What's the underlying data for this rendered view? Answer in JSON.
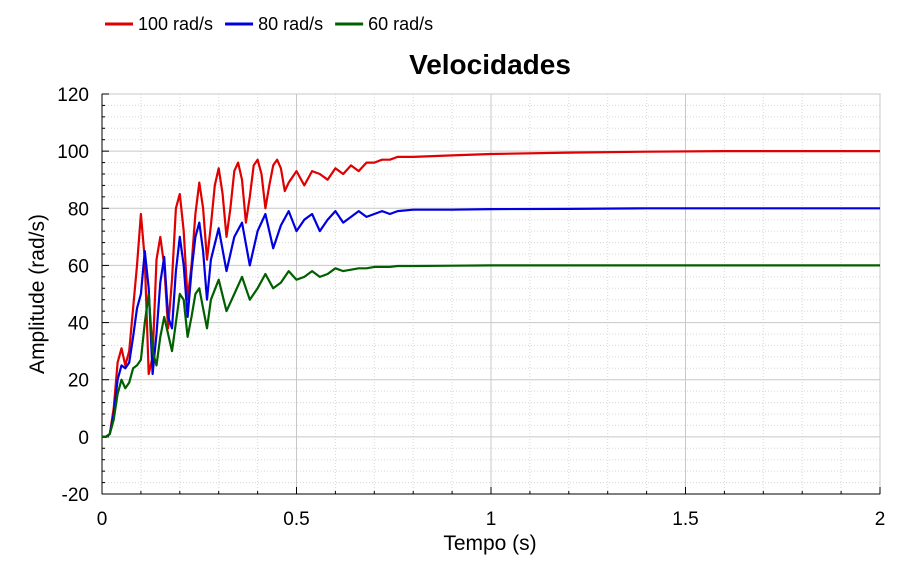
{
  "chart_data": {
    "type": "line",
    "title": "Velocidades",
    "xlabel": "Tempo (s)",
    "ylabel": "Amplitude (rad/s)",
    "xlim": [
      0,
      2
    ],
    "ylim": [
      -20,
      120
    ],
    "x_ticks": [
      0,
      0.5,
      1,
      1.5,
      2
    ],
    "x_tick_labels": [
      "0",
      "0.5",
      "1",
      "1.5",
      "2"
    ],
    "y_ticks": [
      -20,
      0,
      20,
      40,
      60,
      80,
      100,
      120
    ],
    "y_tick_labels": [
      "-20",
      "0",
      "20",
      "40",
      "60",
      "80",
      "100",
      "120"
    ],
    "grid": true,
    "legend_position": "top-left",
    "series": [
      {
        "name": "100 rad/s",
        "color": "#e00000",
        "x": [
          0,
          0.01,
          0.02,
          0.03,
          0.04,
          0.05,
          0.06,
          0.07,
          0.08,
          0.09,
          0.1,
          0.11,
          0.12,
          0.13,
          0.14,
          0.15,
          0.16,
          0.17,
          0.18,
          0.19,
          0.2,
          0.21,
          0.22,
          0.23,
          0.24,
          0.25,
          0.26,
          0.27,
          0.28,
          0.29,
          0.3,
          0.31,
          0.32,
          0.33,
          0.34,
          0.35,
          0.36,
          0.37,
          0.38,
          0.39,
          0.4,
          0.41,
          0.42,
          0.43,
          0.44,
          0.45,
          0.46,
          0.47,
          0.48,
          0.5,
          0.52,
          0.54,
          0.56,
          0.58,
          0.6,
          0.62,
          0.64,
          0.66,
          0.68,
          0.7,
          0.72,
          0.74,
          0.76,
          0.8,
          0.9,
          1.0,
          1.2,
          1.4,
          1.6,
          2.0
        ],
        "y": [
          0,
          0,
          1,
          10,
          26,
          31,
          25,
          30,
          45,
          60,
          78,
          62,
          22,
          28,
          62,
          70,
          60,
          38,
          55,
          80,
          85,
          72,
          48,
          60,
          78,
          89,
          80,
          62,
          74,
          88,
          94,
          85,
          70,
          80,
          93,
          96,
          90,
          75,
          84,
          95,
          97,
          92,
          80,
          88,
          95,
          97,
          94,
          86,
          89,
          93,
          88,
          93,
          92,
          90,
          94,
          92,
          95,
          93,
          96,
          96,
          97,
          97,
          98,
          98,
          98.5,
          99,
          99.5,
          99.8,
          100,
          100
        ]
      },
      {
        "name": "80 rad/s",
        "color": "#0000e0",
        "x": [
          0,
          0.01,
          0.02,
          0.03,
          0.04,
          0.05,
          0.06,
          0.07,
          0.08,
          0.09,
          0.1,
          0.11,
          0.12,
          0.13,
          0.14,
          0.15,
          0.16,
          0.17,
          0.18,
          0.19,
          0.2,
          0.21,
          0.22,
          0.23,
          0.24,
          0.25,
          0.26,
          0.27,
          0.28,
          0.3,
          0.32,
          0.34,
          0.36,
          0.38,
          0.4,
          0.42,
          0.44,
          0.46,
          0.48,
          0.5,
          0.52,
          0.54,
          0.56,
          0.58,
          0.6,
          0.62,
          0.64,
          0.66,
          0.68,
          0.7,
          0.72,
          0.74,
          0.76,
          0.8,
          0.9,
          1.0,
          1.2,
          1.4,
          1.6,
          2.0
        ],
        "y": [
          0,
          0,
          1,
          8,
          20,
          25,
          24,
          26,
          35,
          45,
          50,
          65,
          52,
          22,
          36,
          54,
          63,
          42,
          38,
          58,
          70,
          60,
          42,
          58,
          70,
          75,
          65,
          48,
          62,
          73,
          58,
          70,
          75,
          60,
          72,
          78,
          66,
          74,
          79,
          72,
          76,
          78,
          72,
          76,
          79,
          75,
          77,
          79,
          77,
          78,
          79,
          78,
          79,
          79.5,
          79.5,
          79.7,
          79.8,
          80,
          80,
          80
        ]
      },
      {
        "name": "60 rad/s",
        "color": "#006000",
        "x": [
          0,
          0.01,
          0.02,
          0.03,
          0.04,
          0.05,
          0.06,
          0.07,
          0.08,
          0.09,
          0.1,
          0.11,
          0.12,
          0.13,
          0.14,
          0.15,
          0.16,
          0.17,
          0.18,
          0.19,
          0.2,
          0.21,
          0.22,
          0.23,
          0.24,
          0.25,
          0.26,
          0.27,
          0.28,
          0.3,
          0.32,
          0.34,
          0.36,
          0.38,
          0.4,
          0.42,
          0.44,
          0.46,
          0.48,
          0.5,
          0.52,
          0.54,
          0.56,
          0.58,
          0.6,
          0.62,
          0.64,
          0.66,
          0.68,
          0.7,
          0.72,
          0.74,
          0.76,
          0.8,
          0.9,
          1.0,
          1.2,
          1.4,
          1.6,
          2.0
        ],
        "y": [
          0,
          0,
          1,
          6,
          15,
          20,
          17,
          19,
          24,
          25,
          27,
          40,
          50,
          30,
          25,
          35,
          42,
          36,
          30,
          40,
          50,
          48,
          35,
          42,
          50,
          52,
          45,
          38,
          48,
          55,
          44,
          50,
          56,
          48,
          52,
          57,
          52,
          54,
          58,
          55,
          56,
          58,
          56,
          57,
          59,
          58,
          58.5,
          59,
          59,
          59.5,
          59.5,
          59.5,
          59.8,
          59.8,
          59.9,
          60,
          60,
          60,
          60,
          60
        ]
      }
    ]
  }
}
